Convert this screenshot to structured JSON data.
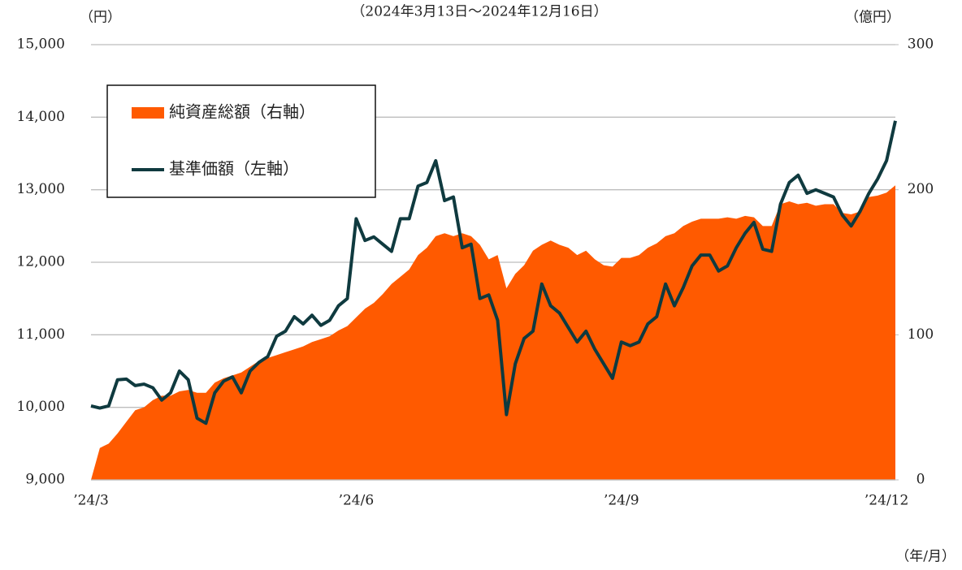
{
  "chart_data": {
    "type": "combo",
    "title": "（2024年3月13日～2024年12月16日）",
    "y_unit": "（円）",
    "y2_unit": "（億円）",
    "x_unit": "（年/月）",
    "categories": [
      "’24/3",
      null,
      null,
      null,
      null,
      null,
      null,
      null,
      null,
      null,
      null,
      null,
      null,
      null,
      null,
      null,
      null,
      null,
      null,
      null,
      null,
      null,
      null,
      null,
      null,
      null,
      null,
      null,
      null,
      null,
      "’24/6",
      null,
      null,
      null,
      null,
      null,
      null,
      null,
      null,
      null,
      null,
      null,
      null,
      null,
      null,
      null,
      null,
      null,
      null,
      null,
      null,
      null,
      null,
      null,
      null,
      null,
      null,
      null,
      null,
      null,
      "’24/9",
      null,
      null,
      null,
      null,
      null,
      null,
      null,
      null,
      null,
      null,
      null,
      null,
      null,
      null,
      null,
      null,
      null,
      null,
      null,
      null,
      null,
      null,
      null,
      null,
      null,
      null,
      null,
      null,
      null,
      "’24/12",
      null
    ],
    "series": [
      {
        "name": "純資産総額（右軸）",
        "type": "area",
        "axis": "y2",
        "color": "#ff5a00",
        "values": [
          0,
          22,
          25,
          32,
          40,
          48,
          50,
          55,
          58,
          58,
          61,
          62,
          60,
          60,
          67,
          70,
          72,
          74,
          78,
          82,
          84,
          86,
          88,
          90,
          92,
          95,
          97,
          99,
          103,
          106,
          112,
          118,
          122,
          128,
          135,
          140,
          145,
          155,
          160,
          168,
          170,
          168,
          170,
          168,
          162,
          152,
          155,
          132,
          142,
          148,
          158,
          162,
          165,
          162,
          160,
          155,
          158,
          152,
          148,
          147,
          153,
          153,
          155,
          160,
          163,
          168,
          170,
          175,
          178,
          180,
          180,
          180,
          181,
          180,
          182,
          181,
          175,
          175,
          190,
          192,
          190,
          191,
          189,
          190,
          190,
          184,
          183,
          185,
          195,
          196,
          198,
          203
        ]
      },
      {
        "name": "基準価額（左軸）",
        "type": "line",
        "axis": "y",
        "color": "#0f3a3f",
        "values": [
          10020,
          9990,
          10020,
          10380,
          10390,
          10300,
          10320,
          10270,
          10100,
          10200,
          10500,
          10380,
          9850,
          9780,
          10200,
          10360,
          10420,
          10200,
          10500,
          10620,
          10700,
          10980,
          11050,
          11250,
          11150,
          11270,
          11130,
          11200,
          11400,
          11500,
          12600,
          12300,
          12350,
          12250,
          12150,
          12600,
          12600,
          13050,
          13100,
          13400,
          12850,
          12900,
          12200,
          12250,
          11500,
          11550,
          11200,
          9900,
          10600,
          10950,
          11050,
          11700,
          11400,
          11300,
          11100,
          10900,
          11050,
          10800,
          10600,
          10400,
          10900,
          10850,
          10900,
          11150,
          11250,
          11700,
          11400,
          11650,
          11950,
          12100,
          12100,
          11880,
          11950,
          12200,
          12400,
          12550,
          12180,
          12150,
          12800,
          13100,
          13200,
          12950,
          13000,
          12950,
          12900,
          12650,
          12500,
          12700,
          12950,
          13150,
          13400,
          13950
        ]
      }
    ],
    "ylim": [
      9000,
      15000
    ],
    "yticks": [
      {
        "value": 9000,
        "label": "9,000"
      },
      {
        "value": 10000,
        "label": "10,000"
      },
      {
        "value": 11000,
        "label": "11,000"
      },
      {
        "value": 12000,
        "label": "12,000"
      },
      {
        "value": 13000,
        "label": "13,000"
      },
      {
        "value": 14000,
        "label": "14,000"
      },
      {
        "value": 15000,
        "label": "15,000"
      }
    ],
    "y2lim": [
      0,
      300
    ],
    "y2ticks": [
      0,
      100,
      200,
      300
    ],
    "grid": true,
    "legend": "top-left"
  }
}
